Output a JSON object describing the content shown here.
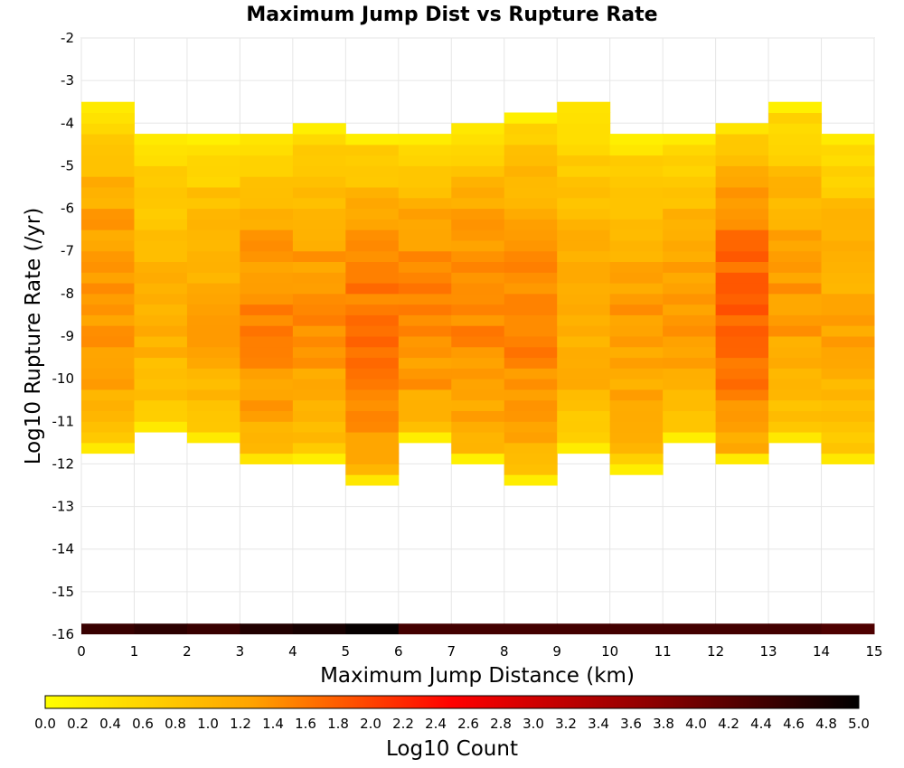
{
  "chart_data": {
    "type": "heatmap",
    "title": "Maximum Jump Dist vs Rupture Rate",
    "xlabel": "Maximum Jump Distance (km)",
    "ylabel": "Log10 Rupture Rate (/yr)",
    "xlim": [
      0,
      15
    ],
    "ylim": [
      -16,
      -2
    ],
    "x_bin_width": 1,
    "y_bin_width": 0.25,
    "x_ticks": [
      "0",
      "1",
      "2",
      "3",
      "4",
      "5",
      "6",
      "7",
      "8",
      "9",
      "10",
      "11",
      "12",
      "13",
      "14",
      "15"
    ],
    "y_ticks": [
      "-2",
      "-3",
      "-4",
      "-5",
      "-6",
      "-7",
      "-8",
      "-9",
      "-10",
      "-11",
      "-12",
      "-13",
      "-14",
      "-15",
      "-16"
    ],
    "colorbar": {
      "label": "Log10 Count",
      "range": [
        0.0,
        5.0
      ],
      "ticks": [
        "0.0",
        "0.2",
        "0.4",
        "0.6",
        "0.8",
        "1.0",
        "1.2",
        "1.4",
        "1.6",
        "1.8",
        "2.0",
        "2.2",
        "2.4",
        "2.6",
        "2.8",
        "3.0",
        "3.2",
        "3.4",
        "3.6",
        "3.8",
        "4.0",
        "4.2",
        "4.4",
        "4.6",
        "4.8",
        "5.0"
      ],
      "colors": [
        "#ffff00",
        "#ffa500",
        "#ff0000",
        "#8b0000",
        "#000000"
      ]
    },
    "column_y_ranges": [
      [
        -11.75,
        -3.5
      ],
      [
        -11.25,
        -4.25
      ],
      [
        -11.5,
        -4.25
      ],
      [
        -12.0,
        -4.25
      ],
      [
        -12.0,
        -4.0
      ],
      [
        -12.5,
        -4.25
      ],
      [
        -11.5,
        -4.25
      ],
      [
        -12.0,
        -4.0
      ],
      [
        -12.5,
        -3.75
      ],
      [
        -11.75,
        -3.5
      ],
      [
        -12.25,
        -4.25
      ],
      [
        -11.5,
        -4.25
      ],
      [
        -12.0,
        -4.0
      ],
      [
        -11.5,
        -3.5
      ],
      [
        -12.0,
        -4.25
      ]
    ],
    "column_peak_log10_count": [
      1.4,
      1.1,
      1.2,
      1.5,
      1.4,
      1.6,
      1.5,
      1.5,
      1.5,
      1.2,
      1.3,
      1.3,
      1.8,
      1.3,
      1.2
    ],
    "bottom_row_y": -16,
    "bottom_row_log10_count": [
      4.5,
      4.6,
      4.5,
      4.7,
      4.8,
      4.95,
      4.4,
      4.4,
      4.4,
      4.4,
      4.4,
      4.4,
      4.4,
      4.4,
      4.3
    ]
  }
}
